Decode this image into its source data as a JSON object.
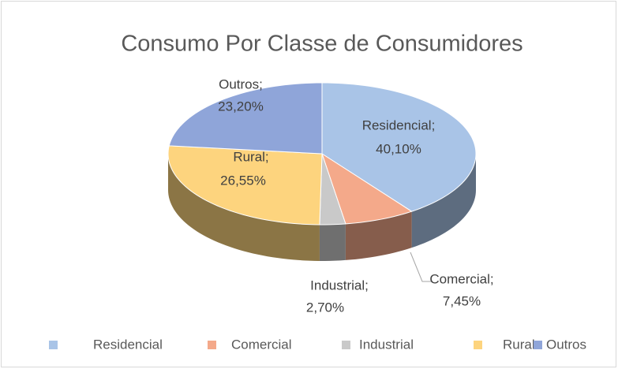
{
  "chart_data": {
    "type": "pie3d",
    "title": "Consumo Por Classe de Consumidores",
    "categories": [
      "Residencial",
      "Comercial",
      "Industrial",
      "Rural",
      "Outros"
    ],
    "label_names": [
      "Residencial;",
      "Comercial;",
      "Industrial;",
      "Rural;",
      "Outros;"
    ],
    "values": [
      40.1,
      7.45,
      2.7,
      26.55,
      23.2
    ],
    "value_labels": [
      "40,10%",
      "7,45%",
      "2,70%",
      "26,55%",
      "23,20%"
    ],
    "colors": [
      "#a9c4e7",
      "#f4a98a",
      "#c9c9c9",
      "#fdd47e",
      "#8fa5d9"
    ],
    "legend": "bottom"
  }
}
